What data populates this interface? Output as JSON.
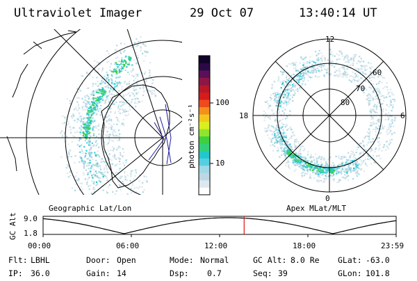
{
  "header": {
    "instrument": "Ultraviolet Imager",
    "date": "29 Oct 07",
    "time": "13:40:14 UT"
  },
  "geo_panel": {
    "label": "Geographic Lat/Lon"
  },
  "apex_panel": {
    "label": "Apex MLat/MLT",
    "mlt_labels": [
      "12",
      "18",
      "6",
      "0"
    ],
    "mlat_labels": [
      "60",
      "70",
      "80"
    ]
  },
  "colorbar": {
    "unit_label": "photon cm⁻²s⁻¹",
    "tick_labels": [
      "100",
      "10"
    ],
    "colors": [
      "#ffffff",
      "#dde8ee",
      "#bcd8e4",
      "#9fd8e6",
      "#55cfe0",
      "#20c8cc",
      "#33d07a",
      "#3ed03e",
      "#8ee62c",
      "#dcee20",
      "#f3c81c",
      "#f4901c",
      "#ee4a1c",
      "#d41c1c",
      "#b81828",
      "#8c1644",
      "#5a1058",
      "#2a0a46",
      "#120428"
    ]
  },
  "altitude_plot": {
    "ylabel": "GC Alt",
    "ymax_label": "9.0",
    "ymin_label": "1.8",
    "time_labels": [
      "00:00",
      "06:00",
      "12:00",
      "18:00",
      "23:59"
    ],
    "current_time_hours": 13.67,
    "marker_color": "#e01010"
  },
  "footer": {
    "row1": [
      {
        "key": "Flt:",
        "value": "LBHL"
      },
      {
        "key": "Door:",
        "value": "Open"
      },
      {
        "key": "Mode:",
        "value": "Normal"
      },
      {
        "key": "GC Alt:",
        "value": "8.0 Re"
      },
      {
        "key": "GLat:",
        "value": "-63.0"
      }
    ],
    "row2": [
      {
        "key": "IP:",
        "value": "36.0"
      },
      {
        "key": "Gain:",
        "value": "14"
      },
      {
        "key": "Dsp:",
        "value": "0.7"
      },
      {
        "key": "Seq:",
        "value": "39"
      },
      {
        "key": "GLon:",
        "value": "101.8"
      }
    ]
  }
}
